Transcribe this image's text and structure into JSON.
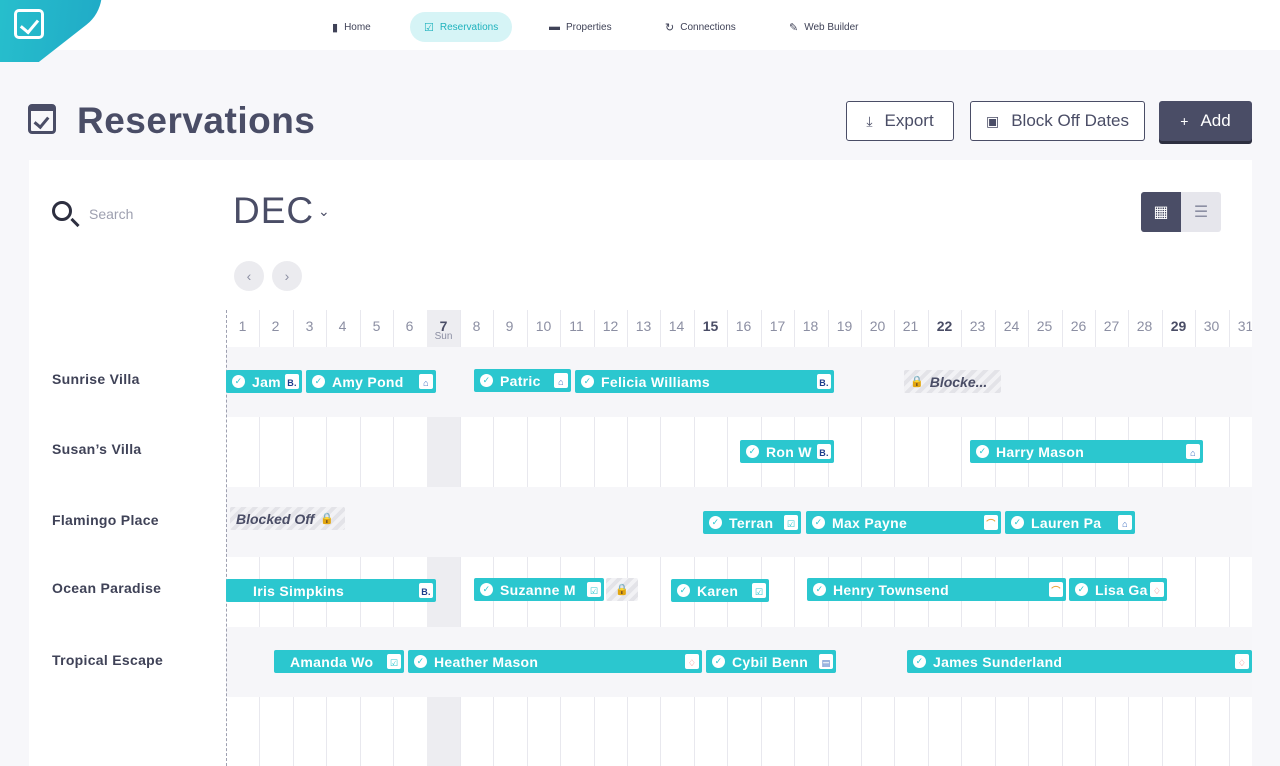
{
  "nav": [
    {
      "label": "Home",
      "icon": "bar-chart-icon"
    },
    {
      "label": "Reservations",
      "icon": "calendar-check-icon"
    },
    {
      "label": "Properties",
      "icon": "bed-icon"
    },
    {
      "label": "Connections",
      "icon": "sync-icon"
    },
    {
      "label": "Web Builder",
      "icon": "brush-icon"
    }
  ],
  "header": {
    "title": "Reservations",
    "export_label": "Export",
    "block_label": "Block Off Dates",
    "add_label": "Add"
  },
  "search": {
    "placeholder": "Search"
  },
  "calendar": {
    "month": "DEC",
    "today_dow": "Sun",
    "days": [
      "1",
      "2",
      "3",
      "4",
      "5",
      "6",
      "7",
      "8",
      "9",
      "10",
      "11",
      "12",
      "13",
      "14",
      "15",
      "16",
      "17",
      "18",
      "19",
      "20",
      "21",
      "22",
      "23",
      "24",
      "25",
      "26",
      "27",
      "28",
      "29",
      "30",
      "31"
    ]
  },
  "properties": [
    "Sunrise Villa",
    "Susan’s Villa",
    "Flamingo Place",
    "Ocean Paradise",
    "Tropical Escape"
  ],
  "reservations": [
    {
      "name": "Jam",
      "source": "booking"
    },
    {
      "name": "Amy Pond",
      "source": "vrbo"
    },
    {
      "name": "Patric",
      "source": "vrbo"
    },
    {
      "name": "Felicia Williams",
      "source": "booking"
    },
    {
      "name": "Blocke...",
      "source": "blocked"
    },
    {
      "name": "Ron W",
      "source": "booking"
    },
    {
      "name": "Harry Mason",
      "source": "vrbo"
    },
    {
      "name": "Blocked Off",
      "source": "blocked"
    },
    {
      "name": "Terran",
      "source": "own"
    },
    {
      "name": "Max Payne",
      "source": "tripadvisor"
    },
    {
      "name": "Lauren Pa",
      "source": "vrbo"
    },
    {
      "name": "Iris Simpkins",
      "source": "booking"
    },
    {
      "name": "Suzanne M",
      "source": "own"
    },
    {
      "name": "Karen",
      "source": "own"
    },
    {
      "name": "Henry Townsend",
      "source": "tripadvisor"
    },
    {
      "name": "Lisa Ga",
      "source": "airbnb"
    },
    {
      "name": "Amanda Wo",
      "source": "own"
    },
    {
      "name": "Heather Mason",
      "source": "airbnb"
    },
    {
      "name": "Cybil Benn",
      "source": "vrbo"
    },
    {
      "name": "James Sunderland",
      "source": "airbnb"
    }
  ],
  "colors": {
    "accent": "#2bc7cf",
    "dark": "#4a4d66"
  }
}
